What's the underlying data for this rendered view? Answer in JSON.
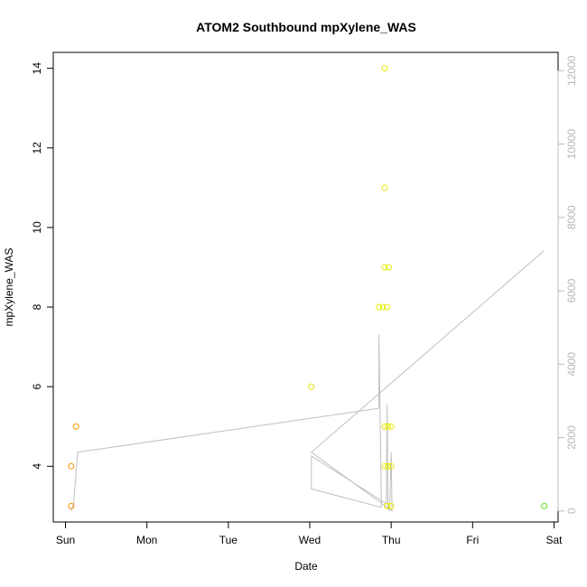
{
  "chart_data": {
    "type": "scatter",
    "title": "ATOM2 Southbound mpXylene_WAS",
    "xlabel": "Date",
    "ylabel": "mpXylene_WAS",
    "x_ticks": [
      "Sun",
      "Mon",
      "Tue",
      "Wed",
      "Thu",
      "Fri",
      "Sat"
    ],
    "x_range_days": [
      -0.15,
      6.05
    ],
    "y_ticks": [
      "4",
      "6",
      "8",
      "10",
      "12",
      "14"
    ],
    "ylim": [
      2.6,
      14.4
    ],
    "y2_ticks": [
      "0",
      "2000",
      "4000",
      "6000",
      "8000",
      "10000",
      "12000"
    ],
    "y2lim": [
      -300,
      12500
    ],
    "points": [
      {
        "day": 0.07,
        "value": 3,
        "color": "#ff8c00"
      },
      {
        "day": 0.07,
        "value": 4,
        "color": "#ff8c00"
      },
      {
        "day": 0.13,
        "value": 5,
        "color": "#ff9a00"
      },
      {
        "day": 3.02,
        "value": 6,
        "color": "#d9e600"
      },
      {
        "day": 3.85,
        "value": 8,
        "color": "#e6ee00"
      },
      {
        "day": 3.9,
        "value": 8,
        "color": "#e6ee00"
      },
      {
        "day": 3.95,
        "value": 8,
        "color": "#e6ee00"
      },
      {
        "day": 3.92,
        "value": 14,
        "color": "#e6ee00"
      },
      {
        "day": 3.92,
        "value": 11,
        "color": "#e6ee00"
      },
      {
        "day": 3.92,
        "value": 9,
        "color": "#e6ee00"
      },
      {
        "day": 3.97,
        "value": 9,
        "color": "#e6ee00"
      },
      {
        "day": 3.92,
        "value": 5,
        "color": "#e6ee00"
      },
      {
        "day": 3.96,
        "value": 5,
        "color": "#e6ee00"
      },
      {
        "day": 4.0,
        "value": 5,
        "color": "#e6ee00"
      },
      {
        "day": 3.92,
        "value": 4,
        "color": "#e6ee00"
      },
      {
        "day": 3.96,
        "value": 4,
        "color": "#e6ee00"
      },
      {
        "day": 4.0,
        "value": 4,
        "color": "#e6ee00"
      },
      {
        "day": 3.95,
        "value": 3,
        "color": "#e6ee00"
      },
      {
        "day": 4.0,
        "value": 3,
        "color": "#e6ee00"
      },
      {
        "day": 5.88,
        "value": 3,
        "color": "#66dd22"
      }
    ],
    "secondary_line": {
      "color": "#c0c0c0",
      "points": [
        {
          "day": 0.07,
          "value": 0
        },
        {
          "day": 0.1,
          "value": 200
        },
        {
          "day": 0.15,
          "value": 1600
        },
        {
          "day": 3.85,
          "value": 2800
        },
        {
          "day": 3.85,
          "value": 4800
        },
        {
          "day": 3.88,
          "value": 100
        },
        {
          "day": 3.02,
          "value": 600
        },
        {
          "day": 3.02,
          "value": 1500
        },
        {
          "day": 3.94,
          "value": 200
        },
        {
          "day": 3.95,
          "value": 2900
        },
        {
          "day": 3.96,
          "value": 100
        },
        {
          "day": 3.98,
          "value": 0
        },
        {
          "day": 4.0,
          "value": 1600
        },
        {
          "day": 4.01,
          "value": 0
        },
        {
          "day": 3.02,
          "value": 1600
        },
        {
          "day": 5.88,
          "value": 7100
        }
      ]
    }
  }
}
